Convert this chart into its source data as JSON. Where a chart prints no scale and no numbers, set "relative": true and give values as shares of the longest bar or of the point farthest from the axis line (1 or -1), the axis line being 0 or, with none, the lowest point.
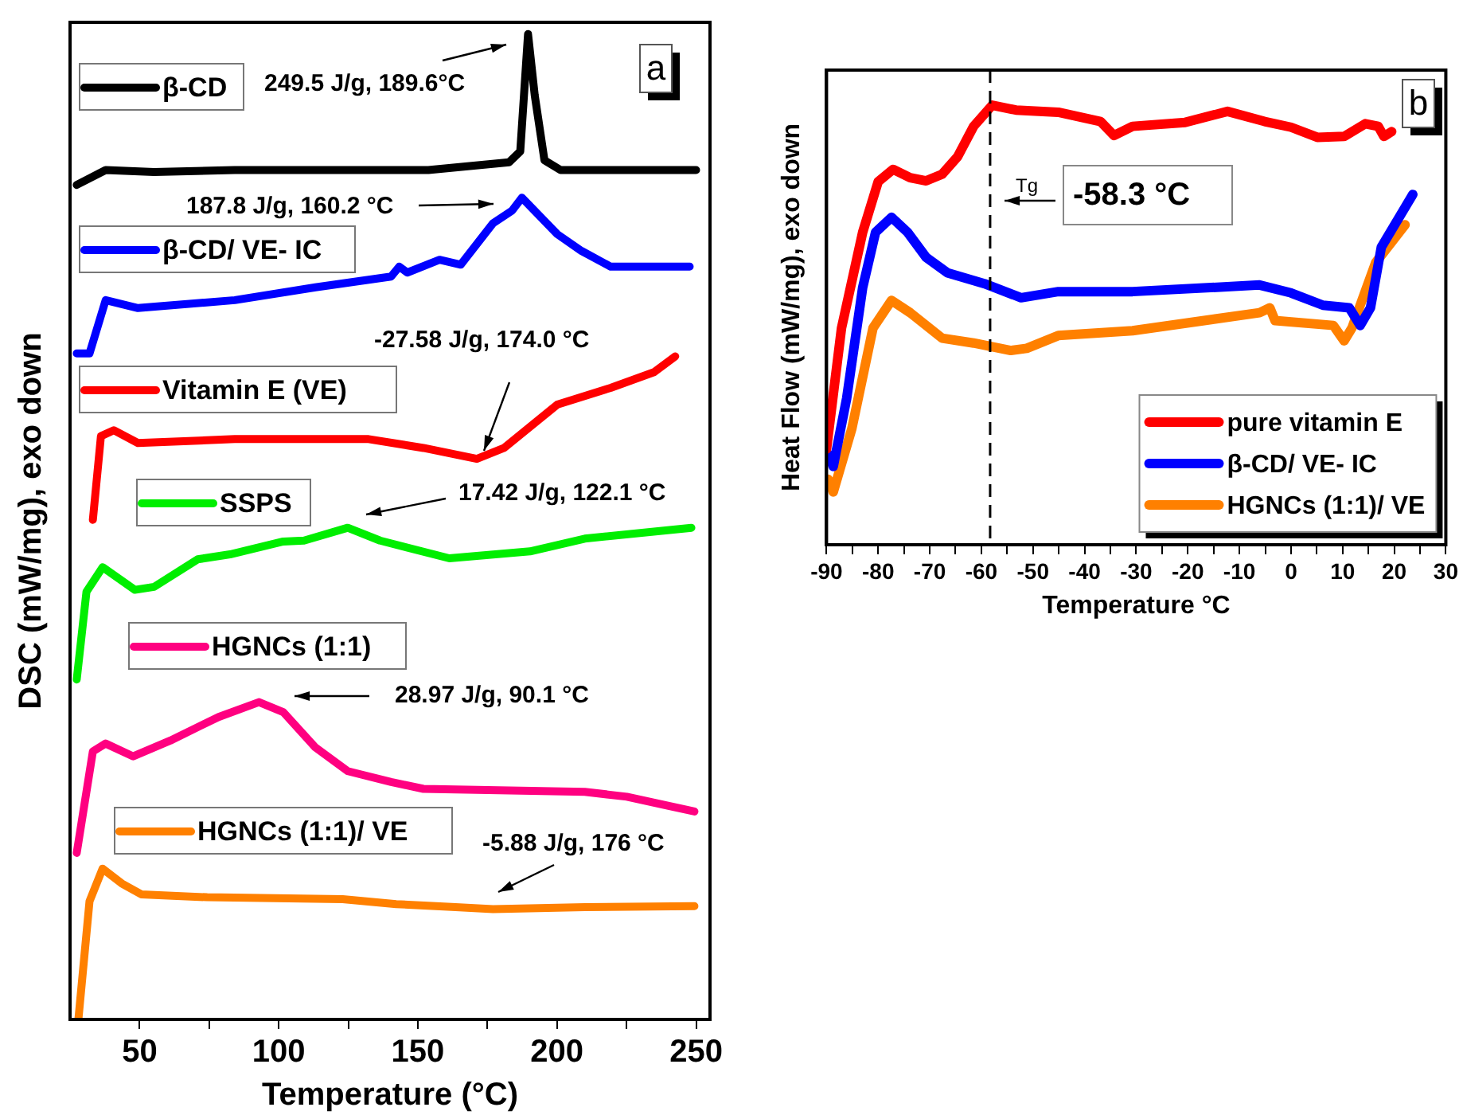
{
  "chart_data": [
    {
      "type": "line",
      "relative": true,
      "xlabel": "Temperature (°C)",
      "ylabel": "DSC (mW/mg), exo down",
      "xlim": [
        25,
        255
      ],
      "xticks": [
        50,
        {
          "value": 75,
          "label": null
        },
        100,
        {
          "value": 125,
          "label": null
        },
        150,
        {
          "value": 175,
          "label": null
        },
        200,
        {
          "value": 225,
          "label": null
        },
        250
      ],
      "grid": false,
      "legend": "left",
      "marker": "none",
      "line_style": "solid",
      "series": [
        {
          "name": "β-CD",
          "color": "#000000",
          "x": [
            27.4,
            37.8,
            55.2,
            84.2,
            153.8,
            182.8,
            186.8,
            189.6,
            192.0,
            195.5,
            201.3,
            250
          ],
          "values": [
            0.847,
            0.862,
            0.86,
            0.862,
            0.862,
            0.87,
            0.881,
            1.0,
            0.938,
            0.872,
            0.862,
            0.862
          ]
        },
        {
          "name": "β-CD/ VE- IC",
          "color": "#0000ff",
          "x": [
            27.4,
            32.0,
            37.8,
            49.4,
            84.2,
            113.2,
            140.4,
            143.3,
            146.2,
            157.8,
            165.4,
            177.0,
            183.9,
            187.4,
            200.1,
            208.8,
            219.3,
            247.7
          ],
          "values": [
            0.676,
            0.676,
            0.73,
            0.722,
            0.73,
            0.743,
            0.754,
            0.764,
            0.758,
            0.771,
            0.766,
            0.808,
            0.821,
            0.834,
            0.797,
            0.78,
            0.764,
            0.764
          ]
        },
        {
          "name": "Vitamin E (VE)",
          "color": "#ff0000",
          "x": [
            33.2,
            36.1,
            40.7,
            49.4,
            84.2,
            132.3,
            152.0,
            171.2,
            181.0,
            200.1,
            219.3,
            234.9,
            242.5
          ],
          "values": [
            0.507,
            0.592,
            0.598,
            0.585,
            0.589,
            0.589,
            0.58,
            0.569,
            0.58,
            0.624,
            0.641,
            0.657,
            0.673
          ]
        },
        {
          "name": "SSPS",
          "color": "#00ee00",
          "x": [
            27.4,
            30.9,
            36.7,
            48.3,
            55.2,
            70.9,
            82.5,
            101.6,
            109.1,
            124.8,
            136.4,
            161.3,
            190.3,
            210.0,
            248.3
          ],
          "values": [
            0.345,
            0.434,
            0.459,
            0.436,
            0.439,
            0.467,
            0.472,
            0.485,
            0.486,
            0.499,
            0.486,
            0.468,
            0.475,
            0.488,
            0.499
          ]
        },
        {
          "name": "HGNCs (1:1)",
          "color": "#ff0080",
          "x": [
            27.4,
            33.2,
            37.8,
            47.7,
            61.0,
            78.4,
            92.9,
            101.6,
            113.2,
            124.8,
            140.4,
            152.0,
            210.0,
            225.1,
            249.4
          ],
          "values": [
            0.169,
            0.272,
            0.28,
            0.267,
            0.283,
            0.307,
            0.322,
            0.312,
            0.276,
            0.252,
            0.241,
            0.234,
            0.231,
            0.226,
            0.211
          ]
        },
        {
          "name": "HGNCs (1:1)/ VE",
          "color": "#ff8000",
          "x": [
            28.0,
            32.0,
            36.7,
            43.6,
            50.6,
            74.3,
            123.0,
            142.2,
            163.6,
            177.0,
            210.0,
            249.4
          ],
          "values": [
            0.0,
            0.12,
            0.153,
            0.138,
            0.127,
            0.124,
            0.122,
            0.117,
            0.114,
            0.112,
            0.114,
            0.115
          ]
        }
      ],
      "annotations": [
        "249.5 J/g, 189.6°C",
        "187.8 J/g, 160.2 °C",
        "-27.58 J/g, 174.0 °C",
        "17.42 J/g, 122.1 °C",
        "28.97 J/g, 90.1 °C",
        "-5.88 J/g, 176 °C",
        "a"
      ]
    },
    {
      "type": "line",
      "relative": true,
      "xlabel": "Temperature °C",
      "ylabel": "Heat Flow (mW/mg), exo down",
      "xlim": [
        -90,
        30
      ],
      "xticks": [
        -90,
        {
          "value": -85,
          "label": null
        },
        -80,
        {
          "value": -75,
          "label": null
        },
        -70,
        {
          "value": -65,
          "label": null
        },
        -60,
        {
          "value": -55,
          "label": null
        },
        -50,
        {
          "value": -45,
          "label": null
        },
        -40,
        {
          "value": -35,
          "label": null
        },
        -30,
        {
          "value": -25,
          "label": null
        },
        -20,
        {
          "value": -15,
          "label": null
        },
        -10,
        {
          "value": -5,
          "label": null
        },
        0,
        {
          "value": 5,
          "label": null
        },
        10,
        {
          "value": 15,
          "label": null
        },
        20,
        {
          "value": 25,
          "label": null
        },
        30
      ],
      "grid": false,
      "legend": "bottom right",
      "marker": "none",
      "line_style": "solid",
      "series": [
        {
          "name": "pure vitamin E",
          "color": "#ff0000",
          "x": [
            -90,
            -87.1,
            -83.0,
            -80.0,
            -77.1,
            -73.8,
            -70.7,
            -67.6,
            -64.6,
            -61.5,
            -57.9,
            -53.3,
            -45.1,
            -36.9,
            -34.3,
            -30.7,
            -20.5,
            -12.3,
            -5.1,
            0.0,
            5.1,
            10.3,
            14.4,
            16.9,
            18.0,
            19.5
          ],
          "values": [
            0.218,
            0.493,
            0.711,
            0.826,
            0.854,
            0.835,
            0.828,
            0.843,
            0.883,
            0.952,
            1.0,
            0.989,
            0.984,
            0.963,
            0.931,
            0.952,
            0.961,
            0.986,
            0.963,
            0.95,
            0.927,
            0.929,
            0.958,
            0.952,
            0.929,
            0.94
          ]
        },
        {
          "name": "β-CD/ VE- IC",
          "color": "#0000ff",
          "x": [
            -89.7,
            -88.7,
            -86.1,
            -83.0,
            -80.5,
            -77.4,
            -74.3,
            -70.7,
            -66.6,
            -59.4,
            -52.3,
            -45.1,
            -30.7,
            -6.1,
            0.0,
            6.2,
            11.3,
            13.4,
            15.4,
            17.5,
            23.6
          ],
          "values": [
            0.206,
            0.178,
            0.333,
            0.585,
            0.711,
            0.745,
            0.711,
            0.654,
            0.619,
            0.594,
            0.562,
            0.576,
            0.576,
            0.591,
            0.573,
            0.545,
            0.539,
            0.499,
            0.539,
            0.677,
            0.797
          ]
        },
        {
          "name": "HGNCs (1:1)/ VE",
          "color": "#ff8000",
          "x": [
            -89.7,
            -88.7,
            -85.1,
            -81.0,
            -77.4,
            -73.8,
            -67.6,
            -61.5,
            -54.3,
            -51.2,
            -45.1,
            -30.7,
            -6.1,
            -4.1,
            -3.1,
            8.2,
            10.3,
            11.8,
            16.4,
            22.1
          ],
          "values": [
            0.149,
            0.12,
            0.264,
            0.493,
            0.556,
            0.528,
            0.47,
            0.459,
            0.442,
            0.447,
            0.476,
            0.487,
            0.528,
            0.539,
            0.51,
            0.499,
            0.464,
            0.493,
            0.642,
            0.728
          ]
        }
      ],
      "ref_lines": [
        {
          "axis": "x",
          "value": -58.3,
          "color": "#000000",
          "line_style": "dashed"
        }
      ],
      "annotations": [
        "Tg",
        "-58.3 °C",
        "b"
      ]
    }
  ]
}
